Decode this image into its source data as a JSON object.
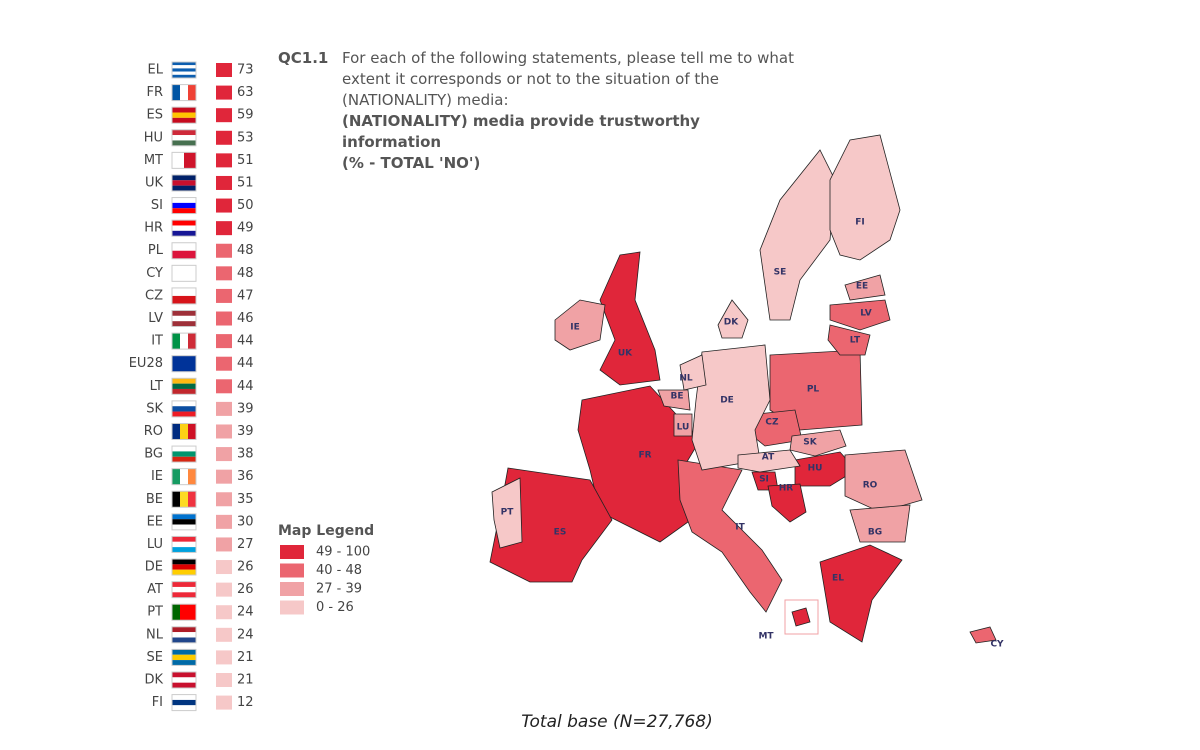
{
  "question": {
    "code": "QC1.1",
    "text": "For each of the following statements, please tell me to what extent it corresponds or not to the situation of the (NATIONALITY) media:",
    "statement": "(NATIONALITY) media provide trustworthy information",
    "measure": "(% - TOTAL 'NO')"
  },
  "rows": [
    {
      "code": "EL",
      "value": 73
    },
    {
      "code": "FR",
      "value": 63
    },
    {
      "code": "ES",
      "value": 59
    },
    {
      "code": "HU",
      "value": 53
    },
    {
      "code": "MT",
      "value": 51
    },
    {
      "code": "UK",
      "value": 51
    },
    {
      "code": "SI",
      "value": 50
    },
    {
      "code": "HR",
      "value": 49
    },
    {
      "code": "PL",
      "value": 48
    },
    {
      "code": "CY",
      "value": 48
    },
    {
      "code": "CZ",
      "value": 47
    },
    {
      "code": "LV",
      "value": 46
    },
    {
      "code": "IT",
      "value": 44
    },
    {
      "code": "EU28",
      "value": 44
    },
    {
      "code": "LT",
      "value": 44
    },
    {
      "code": "SK",
      "value": 39
    },
    {
      "code": "RO",
      "value": 39
    },
    {
      "code": "BG",
      "value": 38
    },
    {
      "code": "IE",
      "value": 36
    },
    {
      "code": "BE",
      "value": 35
    },
    {
      "code": "EE",
      "value": 30
    },
    {
      "code": "LU",
      "value": 27
    },
    {
      "code": "DE",
      "value": 26
    },
    {
      "code": "AT",
      "value": 26
    },
    {
      "code": "PT",
      "value": 24
    },
    {
      "code": "NL",
      "value": 24
    },
    {
      "code": "SE",
      "value": 21
    },
    {
      "code": "DK",
      "value": 21
    },
    {
      "code": "FI",
      "value": 12
    }
  ],
  "legend": {
    "title": "Map Legend",
    "items": [
      {
        "label": "49 - 100",
        "min": 49,
        "max": 100,
        "color": "#e0263a"
      },
      {
        "label": "40 - 48",
        "min": 40,
        "max": 48,
        "color": "#eb6670"
      },
      {
        "label": "27 - 39",
        "min": 27,
        "max": 39,
        "color": "#f0a2a5"
      },
      {
        "label": "0 - 26",
        "min": 0,
        "max": 26,
        "color": "#f6c8c8"
      }
    ]
  },
  "footer": "Total base (N=27,768)"
}
